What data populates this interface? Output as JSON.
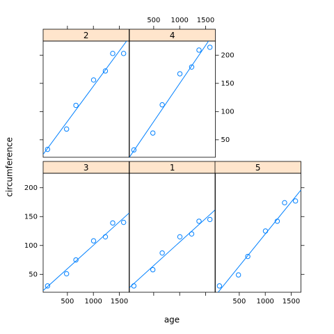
{
  "chart_data": {
    "type": "scatter",
    "xlabel": "age",
    "ylabel": "circumference",
    "x": [
      118,
      484,
      664,
      1004,
      1231,
      1372,
      1582
    ],
    "xlim": [
      33,
      1687
    ],
    "ylim": [
      19,
      225
    ],
    "xticks": [
      500,
      1000,
      1500
    ],
    "yticks": [
      50,
      100,
      150,
      200
    ],
    "point_color": "#0080ff",
    "strip_color": "#ffe5cc",
    "series": [
      {
        "name": "2",
        "values": [
          33,
          69,
          111,
          156,
          172,
          203,
          203
        ]
      },
      {
        "name": "4",
        "values": [
          32,
          62,
          112,
          167,
          179,
          209,
          214
        ]
      },
      {
        "name": "3",
        "values": [
          30,
          51,
          75,
          108,
          115,
          139,
          140
        ]
      },
      {
        "name": "1",
        "values": [
          30,
          58,
          87,
          115,
          120,
          142,
          145
        ]
      },
      {
        "name": "5",
        "values": [
          30,
          49,
          81,
          125,
          142,
          174,
          177
        ]
      }
    ]
  }
}
